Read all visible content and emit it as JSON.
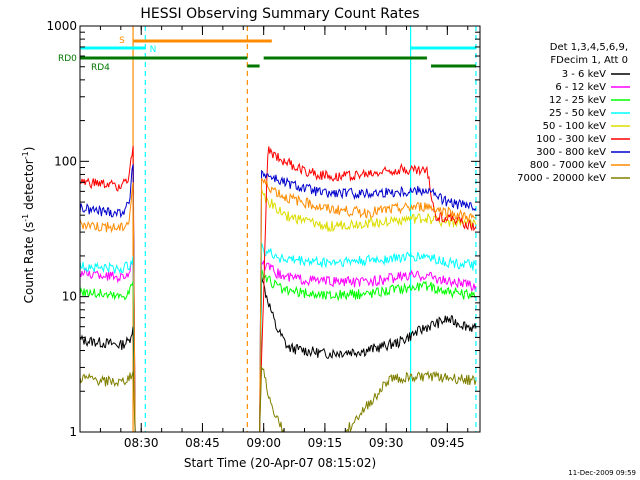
{
  "chart_data": {
    "type": "line",
    "title": "HESSI Observing Summary Count Rates",
    "xlabel": "Start Time (20-Apr-07 08:15:02)",
    "ylabel_parts": [
      "Count Rate (s",
      "-1",
      " detector",
      "-1",
      ")"
    ],
    "yscale": "log",
    "ylim": [
      1,
      1000
    ],
    "y_ticks": [
      {
        "v": 1,
        "label": "1"
      },
      {
        "v": 10,
        "label": "10"
      },
      {
        "v": 100,
        "label": "100"
      },
      {
        "v": 1000,
        "label": "1000"
      }
    ],
    "x_range_minutes": [
      "08:15",
      "09:53"
    ],
    "x_ticks": [
      "08:30",
      "08:45",
      "09:00",
      "09:15",
      "09:30",
      "09:45"
    ],
    "legend": {
      "header": [
        "Det 1,3,4,5,6,9,",
        "FDecim 1, Att 0"
      ],
      "placement": "right"
    },
    "flag_labels": {
      "S": "S",
      "N": "N",
      "RD0": "RD0",
      "RD4": "RD4"
    },
    "flags": [
      {
        "label": "S",
        "color": "#ff8c00",
        "y": 0,
        "segments": [
          [
            "08:28",
            "09:02"
          ]
        ]
      },
      {
        "label": "N",
        "color": "#00ffff",
        "y": 1,
        "segments": [
          [
            "08:15",
            "08:31"
          ],
          [
            "09:36",
            "09:52"
          ]
        ]
      },
      {
        "label": "RD0",
        "color": "#007700",
        "y": 2,
        "segments": [
          [
            "08:15",
            "08:56"
          ],
          [
            "09:00",
            "09:40"
          ]
        ]
      },
      {
        "label": "RD4",
        "color": "#007700",
        "y": 3,
        "segments": [
          [
            "08:56",
            "08:59"
          ],
          [
            "09:41",
            "09:52"
          ]
        ]
      }
    ],
    "vlines": [
      {
        "t": "08:28",
        "color": "#ff8c00",
        "style": "solid"
      },
      {
        "t": "08:31",
        "color": "#00ffff",
        "style": "dashed"
      },
      {
        "t": "08:56",
        "color": "#ff8c00",
        "style": "dashed"
      },
      {
        "t": "09:36",
        "color": "#00ffff",
        "style": "solid"
      },
      {
        "t": "09:52",
        "color": "#00ffff",
        "style": "dashed"
      }
    ],
    "series": [
      {
        "name": "3 - 6 keV",
        "color": "#000000",
        "points": [
          [
            "08:15",
            4.8
          ],
          [
            "08:20",
            4.6
          ],
          [
            "08:25",
            4.4
          ],
          [
            "08:27",
            4.7
          ],
          [
            "08:28",
            6.0
          ],
          [
            "08:28.5",
            1.0
          ],
          [
            "08:59",
            1.0
          ],
          [
            "08:59.5",
            14
          ],
          [
            "09:00",
            12
          ],
          [
            "09:03",
            6.0
          ],
          [
            "09:06",
            4.2
          ],
          [
            "09:15",
            3.8
          ],
          [
            "09:25",
            4.0
          ],
          [
            "09:33",
            4.6
          ],
          [
            "09:40",
            6.0
          ],
          [
            "09:45",
            6.8
          ],
          [
            "09:52",
            5.8
          ]
        ]
      },
      {
        "name": "6 - 12 keV",
        "color": "#ff00ff",
        "points": [
          [
            "08:15",
            15
          ],
          [
            "08:20",
            14.5
          ],
          [
            "08:25",
            14
          ],
          [
            "08:27",
            15
          ],
          [
            "08:28",
            18
          ],
          [
            "08:28.5",
            1.0
          ],
          [
            "08:59",
            1.0
          ],
          [
            "08:59.5",
            18
          ],
          [
            "09:00",
            17
          ],
          [
            "09:05",
            14
          ],
          [
            "09:15",
            13
          ],
          [
            "09:25",
            12.8
          ],
          [
            "09:33",
            14
          ],
          [
            "09:40",
            14.5
          ],
          [
            "09:45",
            13
          ],
          [
            "09:52",
            12
          ]
        ]
      },
      {
        "name": "12 - 25 keV",
        "color": "#00ff00",
        "points": [
          [
            "08:15",
            11
          ],
          [
            "08:20",
            10.5
          ],
          [
            "08:25",
            10
          ],
          [
            "08:27",
            10.8
          ],
          [
            "08:28",
            13
          ],
          [
            "08:28.5",
            1.0
          ],
          [
            "08:59",
            1.0
          ],
          [
            "08:59.5",
            16
          ],
          [
            "09:00",
            14
          ],
          [
            "09:05",
            11
          ],
          [
            "09:15",
            10.2
          ],
          [
            "09:25",
            10.5
          ],
          [
            "09:33",
            11.5
          ],
          [
            "09:40",
            12
          ],
          [
            "09:45",
            11
          ],
          [
            "09:52",
            10
          ]
        ]
      },
      {
        "name": "25 - 50 keV",
        "color": "#00ffff",
        "points": [
          [
            "08:15",
            17
          ],
          [
            "08:20",
            16.5
          ],
          [
            "08:25",
            16
          ],
          [
            "08:27",
            17
          ],
          [
            "08:28",
            20
          ],
          [
            "08:28.5",
            1.0
          ],
          [
            "08:59",
            1.0
          ],
          [
            "08:59.5",
            25
          ],
          [
            "09:00",
            22
          ],
          [
            "09:05",
            19
          ],
          [
            "09:15",
            18
          ],
          [
            "09:25",
            18.5
          ],
          [
            "09:33",
            19.5
          ],
          [
            "09:40",
            20
          ],
          [
            "09:45",
            18
          ],
          [
            "09:52",
            17
          ]
        ]
      },
      {
        "name": "50 - 100 keV",
        "color": "#dddd00",
        "points": [
          [
            "08:59.5",
            62
          ],
          [
            "09:00",
            55
          ],
          [
            "09:05",
            40
          ],
          [
            "09:15",
            33
          ],
          [
            "09:25",
            35
          ],
          [
            "09:33",
            37
          ],
          [
            "09:40",
            38
          ],
          [
            "09:45",
            36
          ],
          [
            "09:52",
            34
          ]
        ]
      },
      {
        "name": "100 - 300 keV",
        "color": "#ff0000",
        "points": [
          [
            "08:15",
            70
          ],
          [
            "08:20",
            68
          ],
          [
            "08:25",
            66
          ],
          [
            "08:27",
            75
          ],
          [
            "08:28",
            130
          ],
          [
            "08:28.5",
            1.0
          ],
          [
            "08:59",
            1.0
          ],
          [
            "09:01",
            120
          ],
          [
            "09:03",
            110
          ],
          [
            "09:08",
            90
          ],
          [
            "09:15",
            78
          ],
          [
            "09:25",
            80
          ],
          [
            "09:33",
            88
          ],
          [
            "09:40",
            85
          ],
          [
            "09:42",
            40
          ],
          [
            "09:47",
            37
          ],
          [
            "09:52",
            33
          ]
        ]
      },
      {
        "name": "300 - 800 keV",
        "color": "#0000cc",
        "points": [
          [
            "08:15",
            45
          ],
          [
            "08:20",
            43
          ],
          [
            "08:25",
            42
          ],
          [
            "08:27",
            48
          ],
          [
            "08:28",
            95
          ],
          [
            "08:28.5",
            1.0
          ],
          [
            "08:59",
            1.0
          ],
          [
            "08:59.5",
            85
          ],
          [
            "09:00",
            82
          ],
          [
            "09:05",
            70
          ],
          [
            "09:15",
            58
          ],
          [
            "09:25",
            58
          ],
          [
            "09:33",
            60
          ],
          [
            "09:40",
            62
          ],
          [
            "09:45",
            50
          ],
          [
            "09:52",
            45
          ]
        ]
      },
      {
        "name": "800 - 7000 keV",
        "color": "#ff8c00",
        "points": [
          [
            "08:15",
            35
          ],
          [
            "08:20",
            33
          ],
          [
            "08:25",
            32
          ],
          [
            "08:27",
            36
          ],
          [
            "08:28",
            70
          ],
          [
            "08:28.5",
            1.0
          ],
          [
            "08:59",
            1.0
          ],
          [
            "08:59.5",
            75
          ],
          [
            "09:00",
            70
          ],
          [
            "09:05",
            55
          ],
          [
            "09:15",
            45
          ],
          [
            "09:25",
            42
          ],
          [
            "09:33",
            45
          ],
          [
            "09:40",
            47
          ],
          [
            "09:45",
            42
          ],
          [
            "09:52",
            38
          ]
        ]
      },
      {
        "name": "7000 - 20000 keV",
        "color": "#808000",
        "points": [
          [
            "08:15",
            2.5
          ],
          [
            "08:20",
            2.4
          ],
          [
            "08:25",
            2.3
          ],
          [
            "08:27",
            2.5
          ],
          [
            "08:28",
            2.8
          ],
          [
            "08:28.5",
            1.0
          ],
          [
            "08:59",
            1.0
          ],
          [
            "08:59.5",
            3.0
          ],
          [
            "09:00",
            2.8
          ],
          [
            "09:02",
            1.5
          ],
          [
            "09:05",
            1.0
          ],
          [
            "09:20",
            1.0
          ],
          [
            "09:31",
            2.5
          ],
          [
            "09:40",
            2.6
          ],
          [
            "09:52",
            2.4
          ]
        ]
      }
    ]
  },
  "footer": {
    "timestamp": "11-Dec-2009 09:59"
  }
}
